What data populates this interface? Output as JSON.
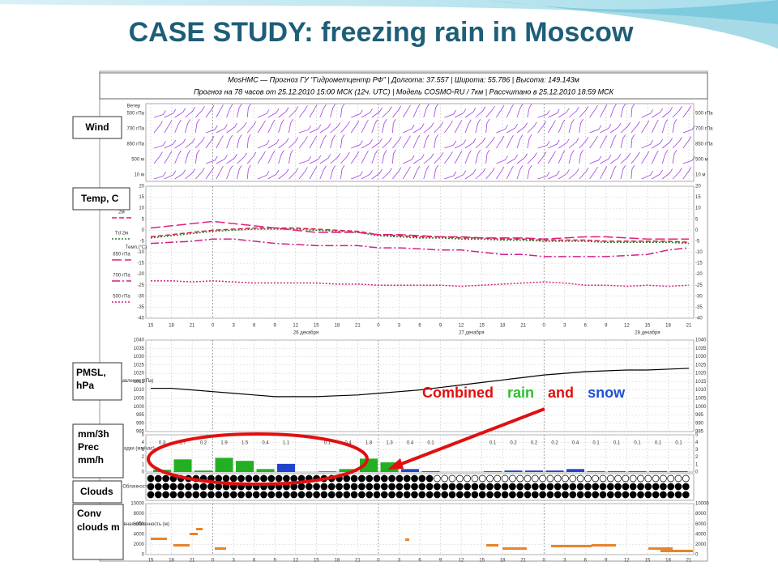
{
  "title": "CASE STUDY: freezing rain in Moscow",
  "header": {
    "line1": "MosHMC — Прогноз ГУ \"Гидрометцентр РФ\" | Долгота: 37.557 | Широта: 55.786 | Высота: 149.143м",
    "line2": "Прогноз на 78 часов от 25.12.2010 15:00 МСК (12ч. UTC) | Модель COSMO-RU / 7км | Рассчитано в 25.12.2010 18:59 МСК"
  },
  "panel_labels": {
    "wind": "Wind",
    "temp": "Temp, C",
    "pmsl": "PMSL, hPa",
    "prec": "mm/3h Prec mm/h",
    "clouds": "Clouds",
    "conv": "Conv clouds m"
  },
  "annotation": {
    "w1": "Combined",
    "w2": "rain",
    "w3": "and",
    "w4": "snow"
  },
  "wind": {
    "title": "Ветер",
    "levels": [
      "500 гПа",
      "700 гПа",
      "850 гПа",
      "500 м",
      "10 м"
    ]
  },
  "hours": [
    "15",
    "18",
    "21",
    "0",
    "3",
    "6",
    "9",
    "12",
    "15",
    "18",
    "21",
    "0",
    "3",
    "6",
    "9",
    "12",
    "15",
    "18",
    "21",
    "0",
    "3",
    "6",
    "9",
    "12",
    "15",
    "18",
    "21"
  ],
  "dates": [
    "26 декабря",
    "27 декабря",
    "28 декабря"
  ],
  "temp": {
    "axis_title": "Темп.(°C)",
    "ylim": [
      -40,
      20
    ],
    "yticks": [
      20,
      15,
      10,
      5,
      0,
      -5,
      -10,
      -15,
      -20,
      -25,
      -30,
      -35,
      -40
    ],
    "series": [
      {
        "name": "2м",
        "color": "#e0204a",
        "dash": "6 3",
        "values": [
          -3,
          -2,
          -1,
          0,
          0.5,
          1,
          1,
          1,
          0.5,
          0,
          -0.5,
          -2,
          -2.5,
          -3,
          -3,
          -3.5,
          -3.5,
          -4,
          -4,
          -4.5,
          -4.5,
          -4.5,
          -5,
          -5,
          -5,
          -5,
          -5.5
        ]
      },
      {
        "name": "Td 2м",
        "color": "#2a7a2a",
        "dash": "2 2",
        "values": [
          -3.5,
          -2.5,
          -1.5,
          -0.5,
          0,
          0.5,
          0.5,
          0.5,
          0,
          -0.5,
          -1,
          -2.5,
          -3,
          -3.5,
          -3.5,
          -4,
          -4,
          -4.5,
          -4.5,
          -5,
          -5,
          -5,
          -5.5,
          -5.5,
          -5.5,
          -5.5,
          -6
        ]
      },
      {
        "name": "850 гПа",
        "color": "#e0207a",
        "dash": "12 4",
        "values": [
          1,
          2,
          3,
          4,
          3,
          2,
          1,
          0,
          -1,
          -1,
          -1,
          -2,
          -2,
          -2.5,
          -3,
          -3,
          -3.5,
          -3.5,
          -3.5,
          -4,
          -3.5,
          -3,
          -3,
          -3.5,
          -4,
          -4,
          -4
        ]
      },
      {
        "name": "700 гПа",
        "color": "#d0208a",
        "dash": "10 3 2 3",
        "values": [
          -6,
          -5.5,
          -5,
          -4,
          -4,
          -5,
          -6,
          -6.5,
          -7,
          -7,
          -7,
          -8,
          -8,
          -8.5,
          -9,
          -9,
          -10,
          -11,
          -11,
          -12,
          -12,
          -12,
          -12,
          -11.5,
          -11,
          -9,
          -8
        ]
      },
      {
        "name": "500 гПа",
        "color": "#d0207a",
        "dash": "2 2",
        "values": [
          -23,
          -23,
          -23.5,
          -23,
          -23.5,
          -24,
          -24,
          -24,
          -24,
          -24.5,
          -24.5,
          -25,
          -25,
          -25,
          -25,
          -25.5,
          -25,
          -24.5,
          -24,
          -23.5,
          -24,
          -25,
          -25,
          -25.5,
          -25,
          -25.5,
          -25
        ]
      }
    ]
  },
  "pmsl": {
    "axis_title": "Давление (гПа)",
    "ylim": [
      985,
      1040
    ],
    "yticks": [
      1040,
      1035,
      1030,
      1025,
      1020,
      1015,
      1010,
      1005,
      1000,
      995,
      990,
      985
    ],
    "values": [
      1011,
      1011,
      1010,
      1009,
      1008,
      1007,
      1006,
      1006,
      1006,
      1006.5,
      1007,
      1008,
      1009,
      1010,
      1011.5,
      1013,
      1014.5,
      1016,
      1017.5,
      1019,
      1020,
      1021,
      1021.5,
      1022,
      1022,
      1022.5,
      1023
    ],
    "color": "#000000"
  },
  "prec": {
    "axis_title": "Осадки (мм/час)",
    "ylim": [
      0,
      5
    ],
    "yticks": [
      5,
      4,
      3,
      2,
      1,
      0
    ],
    "values": [
      0.3,
      1.7,
      0.2,
      1.9,
      1.5,
      0.4,
      1.1,
      null,
      0.1,
      0.4,
      1.8,
      1.3,
      0.4,
      0.1,
      null,
      null,
      0.1,
      0.2,
      0.2,
      0.2,
      0.4,
      0.1,
      0.1,
      0.1,
      0.1,
      0.1
    ],
    "colors": [
      "#22b022",
      "#22b022",
      "#22b022",
      "#22b022",
      "#22b022",
      "#22b022",
      "#2244cc",
      null,
      "#22b022",
      "#22b022",
      "#22b022",
      "#22b022",
      "#2244cc",
      "#2244cc",
      null,
      null,
      "#2244cc",
      "#2244cc",
      "#2244cc",
      "#2244cc",
      "#2244cc",
      "#2244cc",
      "#2244cc",
      "#2244cc",
      "#2244cc",
      "#2244cc"
    ]
  },
  "clouds": {
    "axis_title": "Облачность"
  },
  "conv": {
    "axis_title": "Конвективная облачность (м)",
    "ylim": [
      0,
      10000
    ],
    "yticks": [
      10000,
      8000,
      6000,
      4000,
      2000,
      0
    ]
  }
}
